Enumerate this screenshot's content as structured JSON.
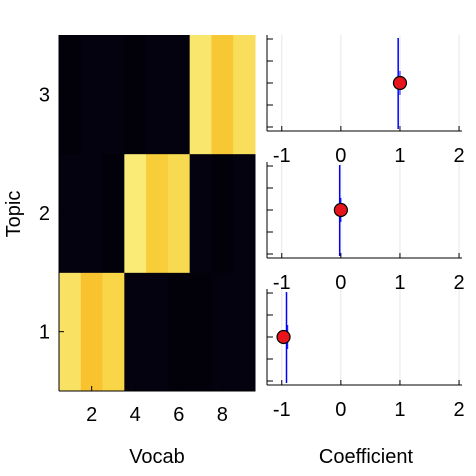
{
  "chart_data": [
    {
      "type": "heatmap",
      "xlabel": "Vocab",
      "ylabel": "Topic",
      "x_ticks": [
        2,
        4,
        6,
        8
      ],
      "y_ticks": [
        1,
        2,
        3
      ],
      "xlim": [
        0.5,
        9.5
      ],
      "ylim": [
        0.5,
        3.5
      ],
      "colormap": [
        "#000004",
        "#1b0c41",
        "#4a0c6b",
        "#781c6d",
        "#a52c60",
        "#cf4446",
        "#ed6925",
        "#fb9b06",
        "#f7d13d",
        "#fcffa4"
      ],
      "rows": [
        {
          "topic": 1,
          "values": [
            0.93,
            0.86,
            0.9,
            0.02,
            0.02,
            0.01,
            0.01,
            0.02,
            0.02
          ]
        },
        {
          "topic": 2,
          "values": [
            0.02,
            0.02,
            0.01,
            0.95,
            0.88,
            0.91,
            0.02,
            0.01,
            0.02
          ]
        },
        {
          "topic": 3,
          "values": [
            0.01,
            0.02,
            0.02,
            0.01,
            0.02,
            0.02,
            0.94,
            0.87,
            0.92
          ]
        }
      ]
    },
    {
      "type": "scatter",
      "xlabel": "Coefficient",
      "xlim": [
        -1.25,
        2.05
      ],
      "x_ticks": [
        -1,
        0,
        1,
        2
      ],
      "panels": [
        {
          "topic": 3,
          "point": 1.0,
          "interval": [
            0.97,
            1.0
          ],
          "inner": [
            0.96,
            1.04
          ]
        },
        {
          "topic": 2,
          "point": 0.0,
          "interval": [
            -0.02,
            0.0
          ],
          "inner": [
            -0.05,
            0.05
          ]
        },
        {
          "topic": 1,
          "point": -0.97,
          "interval": [
            -0.92,
            -0.9
          ],
          "inner": [
            -1.02,
            -0.86
          ]
        }
      ],
      "colors": {
        "point_fill": "#e8141c",
        "interval": "#0000ff",
        "grid": "#e6e6e6"
      }
    }
  ]
}
